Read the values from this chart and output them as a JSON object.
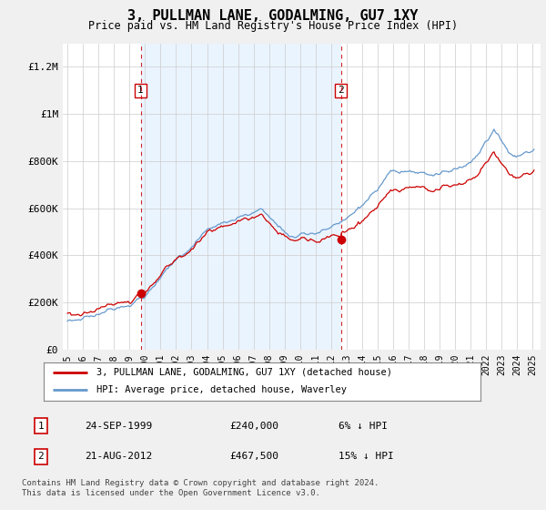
{
  "title": "3, PULLMAN LANE, GODALMING, GU7 1XY",
  "subtitle": "Price paid vs. HM Land Registry's House Price Index (HPI)",
  "legend_line1": "3, PULLMAN LANE, GODALMING, GU7 1XY (detached house)",
  "legend_line2": "HPI: Average price, detached house, Waverley",
  "transaction1_date": "24-SEP-1999",
  "transaction1_price": "£240,000",
  "transaction1_hpi": "6% ↓ HPI",
  "transaction2_date": "21-AUG-2012",
  "transaction2_price": "£467,500",
  "transaction2_hpi": "15% ↓ HPI",
  "footer": "Contains HM Land Registry data © Crown copyright and database right 2024.\nThis data is licensed under the Open Government Licence v3.0.",
  "vline1_x": 1999.72,
  "vline2_x": 2012.63,
  "marker1_x": 1999.72,
  "marker1_y": 240000,
  "marker2_x": 2012.63,
  "marker2_y": 467500,
  "ylim": [
    0,
    1300000
  ],
  "xlim_start": 1994.7,
  "xlim_end": 2025.5,
  "price_line_color": "#cc0000",
  "hpi_line_color": "#6699cc",
  "vline_color": "#cc0000",
  "shade_color": "#ddeeff",
  "background_color": "#f0f0f0",
  "plot_bg_color": "#ffffff",
  "grid_color": "#cccccc",
  "yticks": [
    0,
    200000,
    400000,
    600000,
    800000,
    1000000,
    1200000
  ],
  "ytick_labels": [
    "£0",
    "£200K",
    "£400K",
    "£600K",
    "£800K",
    "£1M",
    "£1.2M"
  ],
  "xticks": [
    1995,
    1996,
    1997,
    1998,
    1999,
    2000,
    2001,
    2002,
    2003,
    2004,
    2005,
    2006,
    2007,
    2008,
    2009,
    2010,
    2011,
    2012,
    2013,
    2014,
    2015,
    2016,
    2017,
    2018,
    2019,
    2020,
    2021,
    2022,
    2023,
    2024,
    2025
  ]
}
